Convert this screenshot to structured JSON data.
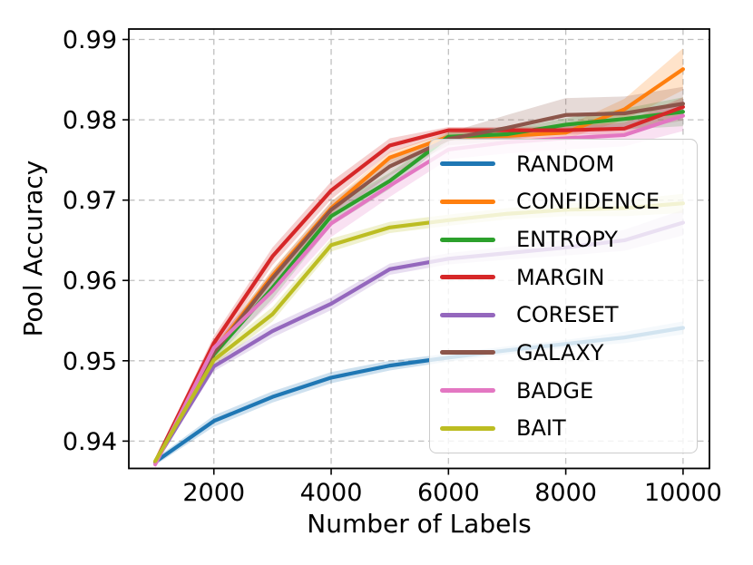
{
  "chart_data": {
    "type": "line",
    "title": "",
    "xlabel": "Number of Labels",
    "ylabel": "Pool Accuracy",
    "x": [
      1000,
      2000,
      3000,
      4000,
      5000,
      6000,
      7000,
      8000,
      9000,
      10000
    ],
    "series": [
      {
        "name": "RANDOM",
        "color": "#1f77b4",
        "values": [
          0.9374,
          0.9425,
          0.9455,
          0.9479,
          0.9494,
          0.9504,
          0.9513,
          0.9521,
          0.9529,
          0.9541
        ],
        "band": [
          0.0004,
          0.0007,
          0.0007,
          0.0007,
          0.0006,
          0.0005,
          0.0005,
          0.0005,
          0.0007,
          0.0008
        ]
      },
      {
        "name": "CONFIDENCE",
        "color": "#ff7f0e",
        "values": [
          0.9374,
          0.9512,
          0.9606,
          0.969,
          0.9753,
          0.9779,
          0.978,
          0.9784,
          0.9813,
          0.9863
        ],
        "band": [
          0.0003,
          0.0006,
          0.0008,
          0.0008,
          0.0007,
          0.0005,
          0.0005,
          0.0008,
          0.0013,
          0.0026
        ]
      },
      {
        "name": "ENTROPY",
        "color": "#2ca02c",
        "values": [
          0.9374,
          0.9508,
          0.9591,
          0.968,
          0.9724,
          0.9779,
          0.9782,
          0.9794,
          0.9801,
          0.981
        ],
        "band": [
          0.0003,
          0.0007,
          0.0014,
          0.0012,
          0.001,
          0.0005,
          0.0006,
          0.0008,
          0.0013,
          0.0018
        ]
      },
      {
        "name": "MARGIN",
        "color": "#d62728",
        "values": [
          0.9374,
          0.9522,
          0.963,
          0.9712,
          0.9768,
          0.9787,
          0.9787,
          0.9787,
          0.9789,
          0.9816
        ],
        "band": [
          0.0003,
          0.0009,
          0.0011,
          0.0011,
          0.0009,
          0.0004,
          0.0004,
          0.0005,
          0.0008,
          0.0012
        ]
      },
      {
        "name": "CORESET",
        "color": "#9467bd",
        "values": [
          0.9374,
          0.9493,
          0.9537,
          0.9571,
          0.9614,
          0.9627,
          0.9634,
          0.9641,
          0.965,
          0.9672
        ],
        "band": [
          0.0003,
          0.0006,
          0.0008,
          0.0008,
          0.0007,
          0.0007,
          0.0008,
          0.001,
          0.0013,
          0.0016
        ]
      },
      {
        "name": "GALAXY",
        "color": "#8c564b",
        "values": [
          0.9374,
          0.951,
          0.9603,
          0.9688,
          0.9742,
          0.9776,
          0.979,
          0.9806,
          0.9808,
          0.982
        ],
        "band": [
          0.0003,
          0.0008,
          0.001,
          0.001,
          0.0011,
          0.0008,
          0.0016,
          0.0021,
          0.0021,
          0.0021
        ]
      },
      {
        "name": "BADGE",
        "color": "#e377c2",
        "values": [
          0.9371,
          0.9516,
          0.9587,
          0.9671,
          0.9718,
          0.9763,
          0.9772,
          0.9777,
          0.9781,
          0.9805
        ],
        "band": [
          0.0005,
          0.001,
          0.0014,
          0.0017,
          0.0014,
          0.0012,
          0.0014,
          0.0014,
          0.0014,
          0.0019
        ]
      },
      {
        "name": "BAIT",
        "color": "#bcbd22",
        "values": [
          0.9375,
          0.9501,
          0.9558,
          0.9644,
          0.9666,
          0.9675,
          0.9683,
          0.9688,
          0.969,
          0.9696
        ],
        "band": [
          0.0003,
          0.0007,
          0.0009,
          0.0008,
          0.0007,
          0.0007,
          0.0007,
          0.0008,
          0.001,
          0.0012
        ]
      }
    ],
    "xticks": [
      2000,
      4000,
      6000,
      8000,
      10000
    ],
    "xtick_labels": [
      "2000",
      "4000",
      "6000",
      "8000",
      "10000"
    ],
    "yticks": [
      0.94,
      0.95,
      0.96,
      0.97,
      0.98,
      0.99
    ],
    "ytick_labels": [
      "0.94",
      "0.95",
      "0.96",
      "0.97",
      "0.98",
      "0.99"
    ],
    "xlim": [
      550,
      10450
    ],
    "ylim": [
      0.9366,
      0.9913
    ],
    "grid": true,
    "grid_style": "dashed",
    "legend_position": "inside center-right",
    "legend_entries": [
      "RANDOM",
      "CONFIDENCE",
      "ENTROPY",
      "MARGIN",
      "CORESET",
      "GALAXY",
      "BADGE",
      "BAIT"
    ]
  },
  "colors": {
    "grid": "#c0c0c0",
    "spine": "#000000",
    "tick": "#000000",
    "text": "#000000",
    "legend_border": "#cccccc",
    "background": "#ffffff"
  }
}
